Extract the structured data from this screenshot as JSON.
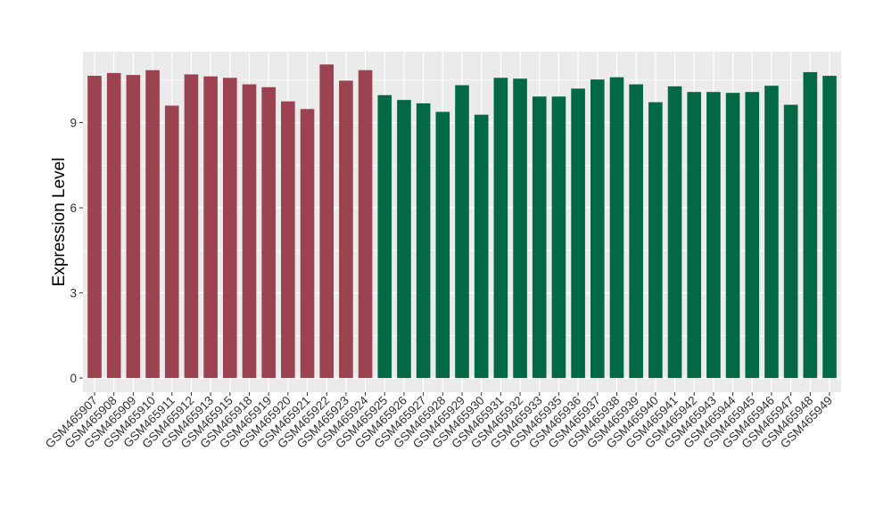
{
  "chart_data": {
    "type": "bar",
    "title": "",
    "xlabel": "",
    "ylabel": "Expression Level",
    "ylim": [
      -0.5,
      11.5
    ],
    "yticks": [
      0,
      3,
      6,
      9
    ],
    "grid": true,
    "legend": "none",
    "colors": {
      "group1": "#9b4350",
      "group2": "#036944",
      "panel": "#ebebeb",
      "grid": "#ffffff"
    },
    "categories": [
      "GSM465907",
      "GSM465908",
      "GSM465909",
      "GSM465910",
      "GSM465911",
      "GSM465912",
      "GSM465913",
      "GSM465915",
      "GSM465918",
      "GSM465919",
      "GSM465920",
      "GSM465921",
      "GSM465922",
      "GSM465923",
      "GSM465924",
      "GSM465925",
      "GSM465926",
      "GSM465927",
      "GSM465928",
      "GSM465929",
      "GSM465930",
      "GSM465931",
      "GSM465932",
      "GSM465933",
      "GSM465935",
      "GSM465936",
      "GSM465937",
      "GSM465938",
      "GSM465939",
      "GSM465940",
      "GSM465941",
      "GSM465942",
      "GSM465943",
      "GSM465944",
      "GSM465945",
      "GSM465946",
      "GSM465947",
      "GSM465948",
      "GSM465949"
    ],
    "values": [
      10.65,
      10.75,
      10.68,
      10.85,
      9.6,
      10.7,
      10.63,
      10.58,
      10.35,
      10.25,
      9.75,
      9.48,
      11.05,
      10.48,
      10.85,
      9.97,
      9.8,
      9.68,
      9.38,
      10.32,
      9.28,
      10.58,
      10.55,
      9.92,
      9.92,
      10.2,
      10.52,
      10.6,
      10.35,
      9.72,
      10.28,
      10.08,
      10.08,
      10.05,
      10.08,
      10.3,
      9.63,
      10.78,
      10.65
    ],
    "groups": [
      1,
      1,
      1,
      1,
      1,
      1,
      1,
      1,
      1,
      1,
      1,
      1,
      1,
      1,
      1,
      2,
      2,
      2,
      2,
      2,
      2,
      2,
      2,
      2,
      2,
      2,
      2,
      2,
      2,
      2,
      2,
      2,
      2,
      2,
      2,
      2,
      2,
      2,
      2
    ]
  }
}
